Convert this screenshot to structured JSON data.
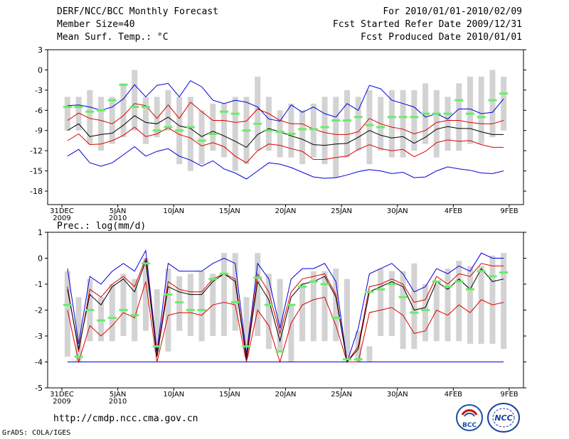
{
  "header": {
    "title": "DERF/NCC/BCC Monthly Forecast",
    "member_size": "Member Size=40",
    "variable1": "Mean Surf. Temp.: °C",
    "period": "For 2010/01/01-2010/02/09",
    "started": "Fcst Started Refer Date 2009/12/31",
    "produced": "Fcst Produced Date 2010/01/01"
  },
  "footer": {
    "url": "http://cmdp.ncc.cma.gov.cn",
    "grads": "GrADS: COLA/IGES",
    "logo_bcc": "BCC",
    "logo_ncc": "NCC"
  },
  "colors": {
    "box": "#d3d3d3",
    "median": "#66ee66",
    "max_min": "#0000dd",
    "sd": "#dd0000",
    "mean": "#000000"
  },
  "chart_data": [
    {
      "type": "box",
      "title": "Mean Surf. Temp.: °C",
      "ylim": [
        -20,
        3
      ],
      "yticks": [
        3,
        0,
        -3,
        -6,
        -9,
        -12,
        -15,
        -18
      ],
      "xlim": [
        0,
        40
      ],
      "xtick_days": [
        0,
        5,
        10,
        15,
        20,
        25,
        30,
        35,
        40
      ],
      "xtick_labels": [
        "31DEC",
        "5JAN",
        "10JAN",
        "15JAN",
        "20JAN",
        "25JAN",
        "30JAN",
        "4FEB",
        "9FEB"
      ],
      "xtick_sublabels": [
        "2009",
        "2010",
        "",
        "",
        "",
        "",
        "",
        "",
        ""
      ],
      "box_low": [
        -9,
        -9,
        -11,
        -12,
        -11,
        -10,
        -9,
        -11,
        -10,
        -9,
        -14,
        -15,
        -14,
        -12,
        -13,
        -15,
        -14,
        -12,
        -12,
        -13,
        -13,
        -14,
        -13,
        -14,
        -16,
        -13,
        -12,
        -14,
        -12,
        -13,
        -13,
        -12,
        -11,
        -13,
        -12,
        -12,
        -11,
        -11,
        -10,
        -9
      ],
      "box_high": [
        -4,
        -4,
        -3,
        -4,
        -4,
        -2,
        0,
        -4,
        -4,
        -3,
        -4,
        -4,
        -6,
        -5,
        -5,
        -4,
        -4,
        -1,
        -4,
        -6,
        -5,
        -6,
        -5,
        -4,
        -4,
        -3,
        -4,
        -3,
        -4,
        -3,
        -3,
        -3,
        -2,
        -3,
        -4,
        -2,
        -1,
        -1,
        0,
        -1
      ],
      "median": [
        -5.5,
        -5.5,
        -6.2,
        -6,
        -4.5,
        -2.2,
        -5.5,
        -5.5,
        -9,
        -8.5,
        -9,
        -8.5,
        -10.5,
        -9.5,
        -6.2,
        -6.5,
        -9,
        -8,
        -9,
        -9.2,
        -9.5,
        -8.8,
        -8.8,
        -8.5,
        -7.5,
        -7.5,
        -7,
        -8.2,
        -8.5,
        -7,
        -7,
        -7,
        -6.5,
        -6.5,
        -6.5,
        -4.5,
        -6.5,
        -7,
        -4.5,
        -3.5
      ],
      "max": [
        -5.3,
        -5.2,
        -5.5,
        -6.0,
        -5.5,
        -4.3,
        -2.2,
        -4.0,
        -2.3,
        -2.0,
        -4.0,
        -1.6,
        -2.5,
        -4.5,
        -5.0,
        -4.5,
        -4.8,
        -5.5,
        -7.3,
        -7.6,
        -5.2,
        -6.3,
        -5.5,
        -6.5,
        -7.0,
        -5.0,
        -6.0,
        -2.3,
        -2.8,
        -4.5,
        -5.0,
        -5.5,
        -7.0,
        -6.5,
        -7.3,
        -5.8,
        -5.8,
        -6.5,
        -6.3,
        -4.3
      ],
      "plus_sd": [
        -7.5,
        -6.4,
        -7.2,
        -7.5,
        -8.0,
        -6.8,
        -5.0,
        -5.3,
        -7.2,
        -5.2,
        -7.2,
        -4.8,
        -6.2,
        -7.5,
        -7.5,
        -7.8,
        -7.6,
        -5.8,
        -6.5,
        -7.5,
        -8.0,
        -8.0,
        -8.8,
        -9.3,
        -9.6,
        -9.6,
        -9.2,
        -7.2,
        -8.0,
        -8.5,
        -8.8,
        -9.5,
        -9.0,
        -7.8,
        -7.5,
        -7.5,
        -7.8,
        -8.0,
        -8.0,
        -7.5
      ],
      "mean": [
        -9.0,
        -8.0,
        -9.9,
        -9.6,
        -9.4,
        -8.2,
        -6.8,
        -7.8,
        -8.0,
        -7.0,
        -8.3,
        -8.7,
        -9.9,
        -9.1,
        -9.8,
        -10.6,
        -11.5,
        -9.6,
        -8.7,
        -9.2,
        -9.8,
        -10.3,
        -11.1,
        -11.2,
        -11.0,
        -10.9,
        -10.0,
        -9.0,
        -9.7,
        -10.1,
        -9.9,
        -10.9,
        -10.0,
        -8.8,
        -8.4,
        -8.7,
        -8.7,
        -9.2,
        -9.6,
        -9.6
      ],
      "minus_sd": [
        -10.5,
        -9.5,
        -11.1,
        -11.0,
        -10.5,
        -9.7,
        -8.5,
        -9.9,
        -9.5,
        -8.6,
        -9.6,
        -10.1,
        -11.3,
        -10.8,
        -11.4,
        -12.8,
        -13.8,
        -12.0,
        -11.0,
        -11.2,
        -11.7,
        -12.1,
        -13.3,
        -13.3,
        -13.0,
        -12.8,
        -11.8,
        -11.1,
        -11.7,
        -12.0,
        -11.8,
        -12.9,
        -12.1,
        -10.8,
        -10.4,
        -10.6,
        -10.5,
        -11.1,
        -11.5,
        -11.5
      ],
      "min": [
        -12.8,
        -11.8,
        -13.8,
        -14.3,
        -13.8,
        -12.6,
        -11.4,
        -12.8,
        -12.1,
        -11.7,
        -12.8,
        -13.4,
        -14.3,
        -13.5,
        -14.7,
        -15.3,
        -16.2,
        -15.0,
        -13.8,
        -14.0,
        -14.5,
        -15.2,
        -15.9,
        -16.1,
        -16.0,
        -15.6,
        -15.1,
        -14.8,
        -15.0,
        -15.4,
        -15.2,
        -16.0,
        -15.9,
        -15.0,
        -14.4,
        -14.7,
        -14.9,
        -15.3,
        -15.4,
        -15.0
      ]
    },
    {
      "type": "box",
      "title": "Prec.: log(mm/d)",
      "ylim": [
        -5,
        1
      ],
      "yticks": [
        1,
        0,
        -1,
        -2,
        -3,
        -4,
        -5
      ],
      "xlim": [
        0,
        40
      ],
      "xtick_days": [
        0,
        5,
        10,
        15,
        20,
        25,
        30,
        35,
        40
      ],
      "xtick_labels": [
        "31DEC",
        "5JAN",
        "10JAN",
        "15JAN",
        "20JAN",
        "25JAN",
        "30JAN",
        "4FEB",
        "9FEB"
      ],
      "xtick_sublabels": [
        "2009",
        "2010",
        "",
        "",
        "",
        "",
        "",
        "",
        ""
      ],
      "box_low": [
        -3.8,
        -4,
        -3.2,
        -3.2,
        -3.2,
        -3,
        -3.2,
        -2.8,
        -3.6,
        -3.6,
        -2.8,
        -3,
        -3.2,
        -3,
        -3,
        -2.8,
        -3.8,
        -3,
        -3.5,
        -3.6,
        -4,
        -3.2,
        -3.2,
        -3.2,
        -3.2,
        -3.8,
        -4,
        -4,
        -3,
        -3,
        -3.5,
        -3.5,
        -3.2,
        -3.2,
        -3.2,
        -3.2,
        -3.3,
        -3.3,
        -3.3,
        -3.5
      ],
      "box_high": [
        -0.5,
        -1.5,
        -0.8,
        -1.5,
        -1,
        -0.6,
        -0.8,
        0,
        -1.2,
        -0.4,
        -0.7,
        -0.6,
        -0.5,
        -0.6,
        0.2,
        0.2,
        -1.5,
        0.2,
        -0.6,
        -0.8,
        -1.8,
        -1,
        -0.5,
        -0.5,
        -0.4,
        -0.8,
        -2.8,
        -3.4,
        -0.4,
        -0.5,
        -0.5,
        -0.2,
        -1,
        -1,
        -0.4,
        -0.1,
        -0.3,
        -0.3,
        0.1,
        0.2
      ],
      "median": [
        -1.8,
        -3.8,
        -2,
        -2.4,
        -2.3,
        -2,
        -2.2,
        -0.2,
        -3.4,
        -1.4,
        -1.7,
        -2,
        -2,
        -0.8,
        -0.6,
        -1.7,
        -3.4,
        -0.75,
        -1.8,
        -3.6,
        -1.8,
        -1.1,
        -0.9,
        -1,
        -2.3,
        -3.9,
        -3.9,
        -1.3,
        -1.2,
        -1,
        -1.5,
        -2.1,
        -2,
        -0.9,
        -1.1,
        -0.9,
        -1.2,
        -0.5,
        -0.7,
        -0.55
      ],
      "max": [
        -0.4,
        -3.3,
        -0.7,
        -1.0,
        -0.5,
        -0.2,
        -0.5,
        0.3,
        -3.6,
        -0.2,
        -0.5,
        -0.5,
        -0.5,
        -0.2,
        0.0,
        -0.2,
        -3.7,
        -0.2,
        -0.8,
        -2.7,
        -0.8,
        -0.4,
        -0.4,
        -0.2,
        -0.9,
        -4.0,
        -2.7,
        -0.6,
        -0.4,
        -0.2,
        -0.6,
        -1.3,
        -1.1,
        -0.4,
        -0.6,
        -0.3,
        -0.5,
        0.2,
        0.0,
        0.0
      ],
      "plus_sd": [
        -1.1,
        -3.6,
        -1.2,
        -1.5,
        -1.0,
        -0.7,
        -1.1,
        0.0,
        -3.7,
        -0.9,
        -1.2,
        -1.3,
        -1.3,
        -0.8,
        -0.6,
        -0.8,
        -3.8,
        -0.6,
        -1.3,
        -2.9,
        -1.3,
        -0.8,
        -0.7,
        -0.6,
        -1.4,
        -4.0,
        -3.4,
        -1.1,
        -1.0,
        -0.8,
        -1.0,
        -1.7,
        -1.6,
        -0.7,
        -1.0,
        -0.6,
        -0.7,
        -0.2,
        -0.3,
        -0.3
      ],
      "mean": [
        -1.2,
        -3.5,
        -1.4,
        -1.8,
        -1.1,
        -0.8,
        -1.3,
        -0.1,
        -3.8,
        -1.1,
        -1.3,
        -1.4,
        -1.4,
        -0.9,
        -0.6,
        -0.9,
        -3.9,
        -0.9,
        -1.6,
        -3.2,
        -1.5,
        -1.0,
        -0.9,
        -0.7,
        -1.5,
        -4.0,
        -3.5,
        -1.3,
        -1.1,
        -0.9,
        -1.1,
        -2.0,
        -1.9,
        -0.9,
        -1.2,
        -0.8,
        -1.2,
        -0.4,
        -0.9,
        -0.8
      ],
      "minus_sd": [
        -2.0,
        -4.0,
        -2.6,
        -3.0,
        -2.6,
        -2.1,
        -2.3,
        -0.9,
        -4.0,
        -2.2,
        -2.1,
        -2.1,
        -2.2,
        -1.8,
        -1.7,
        -1.8,
        -4.0,
        -2.0,
        -2.6,
        -4.0,
        -2.5,
        -1.8,
        -1.6,
        -1.5,
        -2.6,
        -4.0,
        -4.0,
        -2.1,
        -2.0,
        -1.9,
        -2.2,
        -2.9,
        -2.8,
        -2.0,
        -2.2,
        -1.8,
        -2.1,
        -1.6,
        -1.8,
        -1.7
      ],
      "min": [
        -4.0,
        -4.0,
        -4.0,
        -4.0,
        -4.0,
        -4.0,
        -4.0,
        -4.0,
        -4.0,
        -4.0,
        -4.0,
        -4.0,
        -4.0,
        -4.0,
        -4.0,
        -4.0,
        -4.0,
        -4.0,
        -4.0,
        -4.0,
        -4.0,
        -4.0,
        -4.0,
        -4.0,
        -4.0,
        -4.0,
        -4.0,
        -4.0,
        -4.0,
        -4.0,
        -4.0,
        -4.0,
        -4.0,
        -4.0,
        -4.0,
        -4.0,
        -4.0,
        -4.0,
        -4.0,
        -4.0
      ]
    }
  ]
}
